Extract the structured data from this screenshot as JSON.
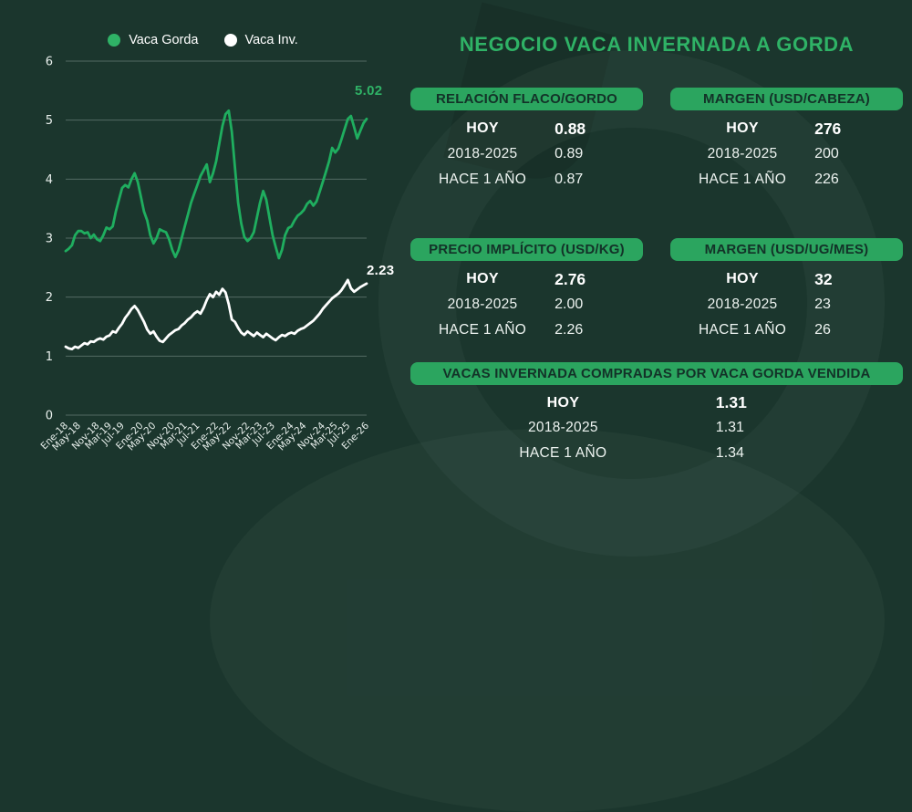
{
  "page": {
    "title": "NEGOCIO VACA INVERNADA A GORDA"
  },
  "colors": {
    "background": "#1b362d",
    "accent_green": "#2fb266",
    "badge_green": "#2ba55f",
    "badge_text": "#133228",
    "line_green": "#1fae5f",
    "line_white": "#ffffff",
    "gridline": "rgba(214,231,224,0.30)",
    "axis_text": "#e8efec"
  },
  "legend": [
    {
      "label": "Vaca Gorda",
      "color": "#2fb266"
    },
    {
      "label": "Vaca Inv.",
      "color": "#ffffff"
    }
  ],
  "annotations": {
    "vaca_gorda_last": "5.02",
    "vaca_inv_last": "2.23"
  },
  "stats": {
    "row_labels": [
      "HOY",
      "2018-2025",
      "HACE 1 AÑO"
    ],
    "cards": [
      {
        "title": "RELACIÓN FLACO/GORDO",
        "values": [
          "0.88",
          "0.89",
          "0.87"
        ]
      },
      {
        "title": "MARGEN (USD/CABEZA)",
        "values": [
          "276",
          "200",
          "226"
        ]
      },
      {
        "title": "PRECIO IMPLÍCITO (USD/KG)",
        "values": [
          "2.76",
          "2.00",
          "2.26"
        ]
      },
      {
        "title": "MARGEN (USD/UG/MES)",
        "values": [
          "32",
          "23",
          "26"
        ]
      },
      {
        "title": "VACAS INVERNADA COMPRADAS POR VACA GORDA VENDIDA",
        "values": [
          "1.31",
          "1.31",
          "1.34"
        ]
      }
    ]
  },
  "chart_data": {
    "type": "line",
    "title": "",
    "xlabel": "",
    "ylabel": "",
    "ylim": [
      0,
      6
    ],
    "yticks": [
      0,
      1,
      2,
      3,
      4,
      5,
      6
    ],
    "grid": true,
    "legend_position": "top",
    "months_total": 96,
    "x_tick_labels": [
      "Ene-18",
      "May-18",
      "Nov-18",
      "Mar-19",
      "Jul-19",
      "Ene-20",
      "May-20",
      "Nov-20",
      "Mar-21",
      "Jul-21",
      "Ene-22",
      "May-22",
      "Nov-22",
      "Mar-23",
      "Jul-23",
      "Ene-24",
      "May-24",
      "Nov-24",
      "Mar-25",
      "Jul-25",
      "Ene-26"
    ],
    "x_tick_months": [
      0,
      4,
      10,
      14,
      18,
      24,
      28,
      34,
      38,
      42,
      48,
      52,
      58,
      62,
      66,
      72,
      76,
      82,
      86,
      90,
      96
    ],
    "series": [
      {
        "name": "Vaca Gorda",
        "color": "#1fae5f",
        "end_label": "5.02",
        "values": [
          2.78,
          2.82,
          2.88,
          3.05,
          3.12,
          3.12,
          3.08,
          3.1,
          3.0,
          3.06,
          2.98,
          2.95,
          3.05,
          3.18,
          3.15,
          3.2,
          3.45,
          3.65,
          3.85,
          3.9,
          3.86,
          4.0,
          4.1,
          3.95,
          3.7,
          3.45,
          3.3,
          3.05,
          2.91,
          3.0,
          3.15,
          3.12,
          3.1,
          2.98,
          2.8,
          2.68,
          2.8,
          3.0,
          3.2,
          3.4,
          3.6,
          3.75,
          3.9,
          4.05,
          4.15,
          4.25,
          3.95,
          4.1,
          4.3,
          4.6,
          4.9,
          5.1,
          5.16,
          4.8,
          4.2,
          3.6,
          3.25,
          3.02,
          2.95,
          3.0,
          3.1,
          3.35,
          3.6,
          3.8,
          3.65,
          3.35,
          3.05,
          2.85,
          2.66,
          2.8,
          3.05,
          3.17,
          3.2,
          3.3,
          3.38,
          3.42,
          3.48,
          3.58,
          3.63,
          3.55,
          3.62,
          3.78,
          3.95,
          4.12,
          4.3,
          4.53,
          4.45,
          4.52,
          4.68,
          4.85,
          5.02,
          5.07,
          4.88,
          4.69,
          4.82,
          4.95,
          5.02
        ]
      },
      {
        "name": "Vaca Inv.",
        "color": "#ffffff",
        "end_label": "2.23",
        "values": [
          1.16,
          1.13,
          1.12,
          1.16,
          1.14,
          1.18,
          1.22,
          1.2,
          1.25,
          1.24,
          1.28,
          1.3,
          1.28,
          1.33,
          1.35,
          1.42,
          1.4,
          1.48,
          1.55,
          1.65,
          1.72,
          1.8,
          1.85,
          1.78,
          1.68,
          1.58,
          1.45,
          1.38,
          1.42,
          1.33,
          1.26,
          1.24,
          1.3,
          1.36,
          1.4,
          1.44,
          1.46,
          1.52,
          1.56,
          1.62,
          1.66,
          1.72,
          1.76,
          1.72,
          1.82,
          1.95,
          2.05,
          2.0,
          2.09,
          2.04,
          2.14,
          2.08,
          1.88,
          1.62,
          1.58,
          1.48,
          1.4,
          1.36,
          1.42,
          1.38,
          1.34,
          1.4,
          1.36,
          1.32,
          1.38,
          1.34,
          1.3,
          1.27,
          1.32,
          1.36,
          1.34,
          1.38,
          1.4,
          1.38,
          1.43,
          1.46,
          1.48,
          1.52,
          1.56,
          1.6,
          1.66,
          1.72,
          1.8,
          1.86,
          1.92,
          1.98,
          2.02,
          2.06,
          2.12,
          2.2,
          2.29,
          2.15,
          2.09,
          2.13,
          2.17,
          2.2,
          2.23
        ]
      }
    ]
  }
}
